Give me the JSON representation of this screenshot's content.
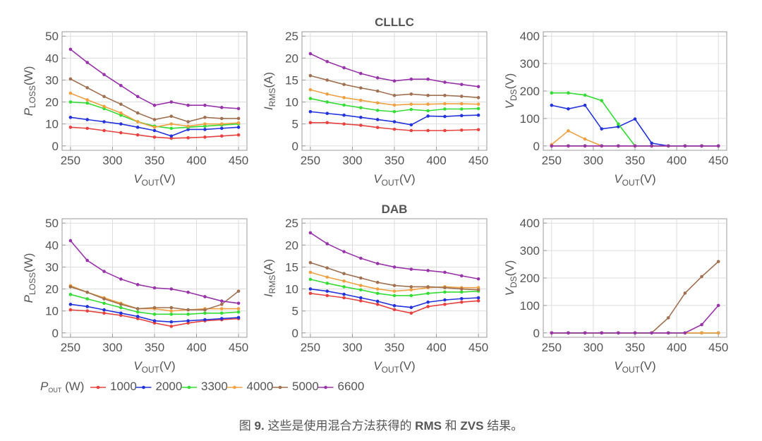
{
  "figure": {
    "legend_title": [
      "P",
      "OUT",
      " (W)"
    ],
    "caption": [
      {
        "text": "图 ",
        "bold": false
      },
      {
        "text": "9.",
        "bold": true
      },
      {
        "text": " 这些是使用混合方法获得的 ",
        "bold": false
      },
      {
        "text": "RMS",
        "bold": true
      },
      {
        "text": " 和 ",
        "bold": false
      },
      {
        "text": "ZVS",
        "bold": true
      },
      {
        "text": " 结果。",
        "bold": false
      }
    ]
  },
  "chart_data": [
    {
      "type": "line",
      "x": [
        250,
        270,
        290,
        310,
        330,
        350,
        370,
        390,
        410,
        430,
        450
      ],
      "xlim": [
        240,
        460
      ],
      "xticks": [
        250,
        300,
        350,
        400,
        450
      ],
      "ylim": [
        -2,
        52
      ],
      "yticks": [
        0,
        10,
        20,
        30,
        40,
        50
      ],
      "grid": true,
      "xlabel": [
        "V",
        "OUT",
        "(V)"
      ],
      "ylabel": [
        "P",
        "LOSS",
        "(W)"
      ],
      "series": [
        {
          "name": "1000",
          "color": "#e8423f",
          "values": [
            8.5,
            8,
            7,
            6,
            5,
            4,
            3.5,
            3.7,
            4,
            4.5,
            5
          ]
        },
        {
          "name": "2000",
          "color": "#2233dd",
          "values": [
            13,
            12,
            11,
            10,
            8.5,
            7,
            4.5,
            7.5,
            7.5,
            8,
            8.5
          ]
        },
        {
          "name": "3300",
          "color": "#33dd33",
          "values": [
            20,
            19.5,
            17,
            14,
            11,
            9,
            8,
            8.5,
            9,
            9.5,
            10
          ]
        },
        {
          "name": "4000",
          "color": "#f0a040",
          "values": [
            24,
            21,
            18,
            15,
            11,
            8.5,
            10,
            9,
            10,
            10,
            10.5
          ]
        },
        {
          "name": "5000",
          "color": "#a07050",
          "values": [
            30.5,
            26.5,
            22.5,
            19,
            15,
            12,
            13.5,
            11,
            13,
            12.5,
            12.5
          ]
        },
        {
          "name": "6600",
          "color": "#9933aa",
          "values": [
            44,
            38,
            32.5,
            27.5,
            22.5,
            18.5,
            20,
            18.5,
            18.5,
            17.5,
            17
          ]
        }
      ]
    },
    {
      "type": "line",
      "title": "CLLLC",
      "x": [
        250,
        270,
        290,
        310,
        330,
        350,
        370,
        390,
        410,
        430,
        450
      ],
      "xlim": [
        240,
        460
      ],
      "xticks": [
        250,
        300,
        350,
        400,
        450
      ],
      "ylim": [
        -1,
        26
      ],
      "yticks": [
        0,
        5,
        10,
        15,
        20,
        25
      ],
      "grid": true,
      "xlabel": [
        "V",
        "OUT",
        "(V)"
      ],
      "ylabel": [
        "I",
        "RMS",
        "(A)"
      ],
      "series": [
        {
          "name": "1000",
          "color": "#e8423f",
          "values": [
            5.3,
            5.3,
            5,
            4.7,
            4.2,
            3.8,
            3.5,
            3.5,
            3.5,
            3.6,
            3.7
          ]
        },
        {
          "name": "2000",
          "color": "#2233dd",
          "values": [
            7.8,
            7.4,
            7,
            6.5,
            6,
            5.5,
            4.8,
            6.8,
            6.7,
            6.9,
            7
          ]
        },
        {
          "name": "3300",
          "color": "#33dd33",
          "values": [
            10.8,
            10,
            9.3,
            8.7,
            8.1,
            7.8,
            8.3,
            8,
            8.4,
            8.4,
            8.5
          ]
        },
        {
          "name": "4000",
          "color": "#f0a040",
          "values": [
            12.8,
            11.8,
            11,
            10.4,
            9.8,
            9.3,
            9.5,
            9.5,
            9.6,
            9.6,
            9.5
          ]
        },
        {
          "name": "5000",
          "color": "#a07050",
          "values": [
            16,
            15,
            14,
            13.2,
            12.5,
            11.5,
            11.8,
            11.5,
            11.5,
            11.3,
            11
          ]
        },
        {
          "name": "6600",
          "color": "#9933aa",
          "values": [
            21,
            19.2,
            17.8,
            16.5,
            15.5,
            14.8,
            15.2,
            15.2,
            14.5,
            14,
            13.5
          ]
        }
      ]
    },
    {
      "type": "line",
      "x": [
        250,
        270,
        290,
        310,
        330,
        350,
        370,
        390,
        410,
        430,
        450
      ],
      "xlim": [
        240,
        460
      ],
      "xticks": [
        250,
        300,
        350,
        400,
        450
      ],
      "ylim": [
        -16,
        416
      ],
      "yticks": [
        0,
        100,
        200,
        300,
        400
      ],
      "grid": true,
      "xlabel": [
        "V",
        "OUT",
        "(V)"
      ],
      "ylabel": [
        "V",
        "DS",
        "(V)"
      ],
      "series": [
        {
          "name": "1000",
          "color": "#e8423f",
          "values": [
            0,
            0,
            0,
            0,
            0,
            0,
            0,
            0,
            0,
            0,
            0
          ]
        },
        {
          "name": "2000",
          "color": "#2233dd",
          "values": [
            148,
            135,
            148,
            62,
            70,
            98,
            10,
            0,
            0,
            0,
            0
          ]
        },
        {
          "name": "3300",
          "color": "#33dd33",
          "values": [
            193,
            193,
            185,
            165,
            80,
            0,
            0,
            0,
            0,
            0,
            0
          ]
        },
        {
          "name": "4000",
          "color": "#f0a040",
          "values": [
            5,
            55,
            25,
            0,
            0,
            0,
            0,
            0,
            0,
            0,
            0
          ]
        },
        {
          "name": "5000",
          "color": "#a07050",
          "values": [
            0,
            0,
            0,
            0,
            0,
            0,
            0,
            0,
            0,
            0,
            0
          ]
        },
        {
          "name": "6600",
          "color": "#9933aa",
          "values": [
            0,
            0,
            0,
            0,
            0,
            0,
            0,
            0,
            0,
            0,
            0
          ]
        }
      ]
    },
    {
      "type": "line",
      "x": [
        250,
        270,
        290,
        310,
        330,
        350,
        370,
        390,
        410,
        430,
        450
      ],
      "xlim": [
        240,
        460
      ],
      "xticks": [
        250,
        300,
        350,
        400,
        450
      ],
      "ylim": [
        -2,
        52
      ],
      "yticks": [
        0,
        10,
        20,
        30,
        40,
        50
      ],
      "grid": true,
      "xlabel": [
        "V",
        "OUT",
        "(V)"
      ],
      "ylabel": [
        "P",
        "LOSS",
        "(W)"
      ],
      "series": [
        {
          "name": "1000",
          "color": "#e8423f",
          "values": [
            10.5,
            10,
            9,
            8,
            6.5,
            4.5,
            3,
            4.5,
            5.5,
            6,
            6.5
          ]
        },
        {
          "name": "2000",
          "color": "#2233dd",
          "values": [
            13,
            12,
            10.5,
            9,
            7.5,
            5.5,
            5,
            5.5,
            6,
            6.5,
            7
          ]
        },
        {
          "name": "3300",
          "color": "#33dd33",
          "values": [
            17.5,
            15.5,
            13.5,
            11.5,
            9.5,
            8.5,
            8.5,
            8.5,
            9,
            9,
            9.5
          ]
        },
        {
          "name": "4000",
          "color": "#f0a040",
          "values": [
            21.5,
            18.5,
            16,
            13.5,
            11,
            11,
            10,
            10.5,
            11,
            11,
            11
          ]
        },
        {
          "name": "5000",
          "color": "#a07050",
          "values": [
            21,
            18.5,
            15.5,
            13,
            11,
            11.5,
            11.5,
            10.5,
            10.5,
            13,
            19
          ]
        },
        {
          "name": "6600",
          "color": "#9933aa",
          "values": [
            42,
            33,
            28,
            24.5,
            22,
            20.5,
            20,
            18.5,
            16.5,
            14.5,
            13.5
          ]
        }
      ]
    },
    {
      "type": "line",
      "title": "DAB",
      "x": [
        250,
        270,
        290,
        310,
        330,
        350,
        370,
        390,
        410,
        430,
        450
      ],
      "xlim": [
        240,
        460
      ],
      "xticks": [
        250,
        300,
        350,
        400,
        450
      ],
      "ylim": [
        -1,
        26
      ],
      "yticks": [
        0,
        5,
        10,
        15,
        20,
        25
      ],
      "grid": true,
      "xlabel": [
        "V",
        "OUT",
        "(V)"
      ],
      "ylabel": [
        "I",
        "RMS",
        "(A)"
      ],
      "series": [
        {
          "name": "1000",
          "color": "#e8423f",
          "values": [
            9,
            8.5,
            8,
            7.3,
            6.5,
            5.3,
            4.5,
            6,
            6.5,
            7,
            7.3
          ]
        },
        {
          "name": "2000",
          "color": "#2233dd",
          "values": [
            10,
            9.5,
            8.8,
            8,
            7.2,
            6.2,
            5.8,
            7,
            7.5,
            7.8,
            8
          ]
        },
        {
          "name": "3300",
          "color": "#33dd33",
          "values": [
            12.2,
            11.3,
            10.5,
            9.8,
            9,
            8.5,
            8.5,
            9,
            9.3,
            9.3,
            9.5
          ]
        },
        {
          "name": "4000",
          "color": "#f0a040",
          "values": [
            13.8,
            12.7,
            11.8,
            10.8,
            10,
            9.5,
            9.8,
            10.3,
            10.5,
            10.3,
            10.3
          ]
        },
        {
          "name": "5000",
          "color": "#a07050",
          "values": [
            16,
            14.8,
            13.5,
            12.5,
            11.5,
            10.8,
            10.5,
            10.5,
            10.3,
            10,
            9.8
          ]
        },
        {
          "name": "6600",
          "color": "#9933aa",
          "values": [
            22.8,
            20.3,
            18.5,
            17,
            15.8,
            15,
            14.5,
            14.2,
            13.8,
            13,
            12.3
          ]
        }
      ]
    },
    {
      "type": "line",
      "x": [
        250,
        270,
        290,
        310,
        330,
        350,
        370,
        390,
        410,
        430,
        450
      ],
      "xlim": [
        240,
        460
      ],
      "xticks": [
        250,
        300,
        350,
        400,
        450
      ],
      "ylim": [
        -16,
        416
      ],
      "yticks": [
        0,
        100,
        200,
        300,
        400
      ],
      "grid": true,
      "xlabel": [
        "V",
        "OUT",
        "(V)"
      ],
      "ylabel": [
        "V",
        "DS",
        "(V)"
      ],
      "series": [
        {
          "name": "1000",
          "color": "#e8423f",
          "values": [
            0,
            0,
            0,
            0,
            0,
            0,
            0,
            0,
            0,
            0,
            0
          ]
        },
        {
          "name": "2000",
          "color": "#2233dd",
          "values": [
            0,
            0,
            0,
            0,
            0,
            0,
            0,
            0,
            0,
            0,
            0
          ]
        },
        {
          "name": "3300",
          "color": "#33dd33",
          "values": [
            0,
            0,
            0,
            0,
            0,
            0,
            0,
            0,
            0,
            0,
            0
          ]
        },
        {
          "name": "4000",
          "color": "#f0a040",
          "values": [
            0,
            0,
            0,
            0,
            0,
            0,
            0,
            0,
            0,
            0,
            0
          ]
        },
        {
          "name": "5000",
          "color": "#a07050",
          "values": [
            0,
            0,
            0,
            0,
            0,
            0,
            0,
            55,
            145,
            205,
            260
          ]
        },
        {
          "name": "6600",
          "color": "#9933aa",
          "values": [
            0,
            0,
            0,
            0,
            0,
            0,
            0,
            0,
            0,
            30,
            100
          ]
        }
      ]
    }
  ]
}
